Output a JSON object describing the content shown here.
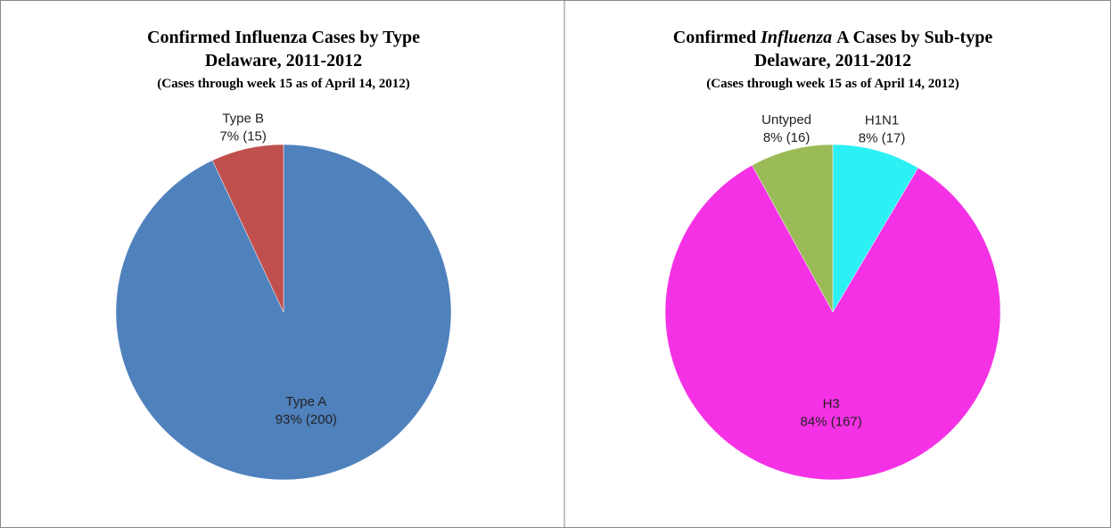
{
  "chart_data": [
    {
      "type": "pie",
      "title": [
        "Confirmed Influenza  Cases by Type"
      ],
      "title_italic": [
        false
      ],
      "subtitle": "Delaware, 2011-2012",
      "note": "(Cases through week 15 as of April 14, 2012)",
      "categories": [
        "Type A",
        "Type B"
      ],
      "values": [
        200,
        15
      ],
      "value_labels": [
        "93% (200)",
        "7% (15)"
      ],
      "colors": [
        "#4f81bd",
        "#c0504d"
      ]
    },
    {
      "type": "pie",
      "title": [
        "Confirmed",
        "Influenza",
        "A Cases by Sub-type"
      ],
      "title_italic": [
        false,
        true,
        false
      ],
      "subtitle": "Delaware, 2011-2012",
      "note": "(Cases through week 15 as of April 14, 2012)",
      "categories": [
        "H1N1",
        "H3",
        "Untyped"
      ],
      "values": [
        17,
        167,
        16
      ],
      "value_labels": [
        "8% (17)",
        "84% (167)",
        "8% (16)"
      ],
      "colors": [
        "#2cf0f4",
        "#f531e6",
        "#9bbb59"
      ]
    }
  ]
}
